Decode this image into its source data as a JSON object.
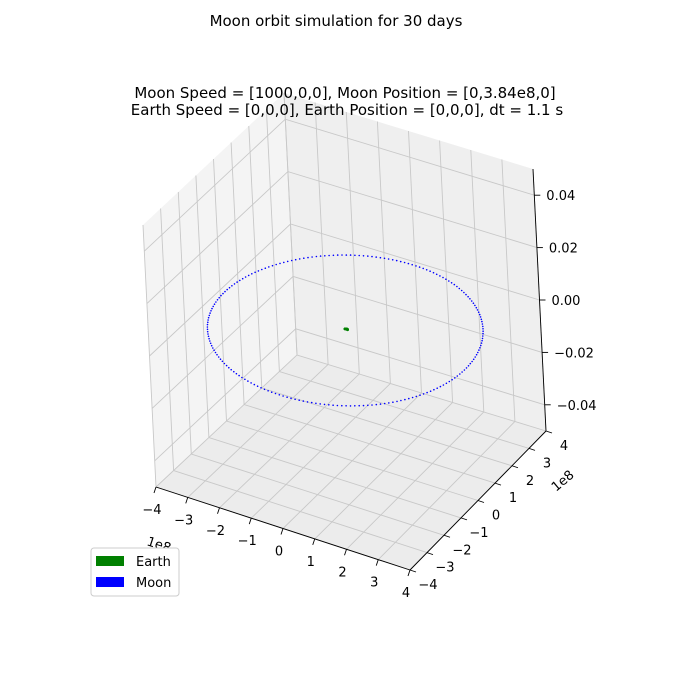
{
  "chart_data": {
    "type": "scatter",
    "projection": "3d",
    "suptitle": "Moon orbit simulation for 30 days",
    "title_lines": [
      "Moon Speed = [1000,0,0], Moon Position = [0,3.84e8,0]",
      "Earth Speed = [0,0,0], Earth Position = [0,0,0], dt = 1.1 s"
    ],
    "x_ticks": [
      "−4",
      "−3",
      "−2",
      "−1",
      "0",
      "1",
      "2",
      "3",
      "4"
    ],
    "x_offset": "1e8",
    "y_ticks": [
      "−4",
      "−3",
      "−2",
      "−1",
      "0",
      "1",
      "2",
      "3",
      "4"
    ],
    "y_offset": "1e8",
    "z_ticks": [
      "−0.04",
      "−0.02",
      "0.00",
      "0.02",
      "0.04"
    ],
    "xlim": [
      -400000000.0,
      400000000.0
    ],
    "ylim": [
      -400000000.0,
      400000000.0
    ],
    "zlim": [
      -0.05,
      0.05
    ],
    "grid": true,
    "legend_position": "lower-left",
    "series": [
      {
        "name": "Earth",
        "color": "#008000",
        "description": "tiny orbit near origin",
        "radius": 5000000.0
      },
      {
        "name": "Moon",
        "color": "#0000ff",
        "description": "circular orbit",
        "radius": 384000000.0
      }
    ]
  }
}
